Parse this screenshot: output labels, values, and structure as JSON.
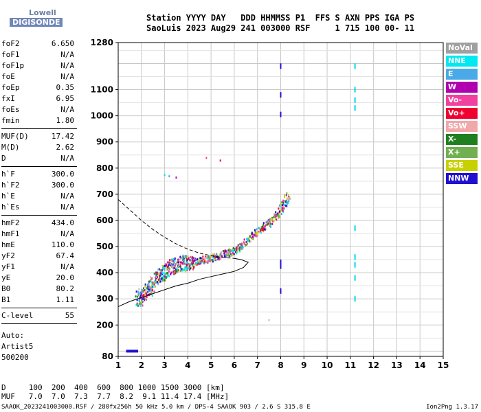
{
  "logo": {
    "line1": "Lowell",
    "line2": "DIGISONDE"
  },
  "header": {
    "line1": "Station YYYY DAY   DDD HHMMSS P1  FFS S AXN PPS IGA PS",
    "line2": "SaoLuis 2023 Aug29 241 003000 RSF     1 715 100 00- 11"
  },
  "params_group1": [
    {
      "k": "foF2",
      "v": "6.650"
    },
    {
      "k": "foF1",
      "v": "N/A"
    },
    {
      "k": "foF1p",
      "v": "N/A"
    },
    {
      "k": "foE",
      "v": "N/A"
    },
    {
      "k": "foEp",
      "v": "0.35"
    },
    {
      "k": "fxI",
      "v": "6.95"
    },
    {
      "k": "foEs",
      "v": "N/A"
    },
    {
      "k": "fmin",
      "v": "1.80"
    }
  ],
  "params_group2": [
    {
      "k": "MUF(D)",
      "v": "17.42"
    },
    {
      "k": "M(D)",
      "v": "2.62"
    },
    {
      "k": "D",
      "v": "N/A"
    }
  ],
  "params_group3": [
    {
      "k": "h`F",
      "v": "300.0"
    },
    {
      "k": "h`F2",
      "v": "300.0"
    },
    {
      "k": "h`E",
      "v": "N/A"
    },
    {
      "k": "h`Es",
      "v": "N/A"
    }
  ],
  "params_group4": [
    {
      "k": "hmF2",
      "v": "434.0"
    },
    {
      "k": "hmF1",
      "v": "N/A"
    },
    {
      "k": "hmE",
      "v": "110.0"
    },
    {
      "k": "yF2",
      "v": "67.4"
    },
    {
      "k": "yF1",
      "v": "N/A"
    },
    {
      "k": "yE",
      "v": "20.0"
    },
    {
      "k": "B0",
      "v": "80.2"
    },
    {
      "k": "B1",
      "v": "1.11"
    }
  ],
  "params_group5": [
    {
      "k": "C-level",
      "v": "55"
    }
  ],
  "auto": {
    "line1": "Auto:",
    "line2": "Artist5",
    "line3": "500200"
  },
  "legend": [
    {
      "label": "NoVal",
      "color": "#a0a0a0"
    },
    {
      "label": "NNE",
      "color": "#00e8f0"
    },
    {
      "label": "E",
      "color": "#4aaae8"
    },
    {
      "label": "W",
      "color": "#b000b0"
    },
    {
      "label": "Vo-",
      "color": "#f040a0"
    },
    {
      "label": "Vo+",
      "color": "#f00030"
    },
    {
      "label": "SSW",
      "color": "#f0a8a8"
    },
    {
      "label": "X-",
      "color": "#208020"
    },
    {
      "label": "X+",
      "color": "#70b050"
    },
    {
      "label": "SSE",
      "color": "#c8d000"
    },
    {
      "label": "NNW",
      "color": "#2010d0"
    }
  ],
  "muf_table": {
    "line1": "D     100  200  400  600  800 1000 1500 3000 [km]",
    "line2": "MUF   7.0  7.0  7.3  7.7  8.2  9.1 11.4 17.4 [MHz]"
  },
  "footer": {
    "left": "SAAOK_2023241003000.RSF / 280fx256h 50 kHz 5.0 km / DPS-4 SAAOK 903 / 2.6 S 315.8 E",
    "right": "Ion2Png 1.3.17"
  },
  "chart_data": {
    "type": "scatter",
    "title": "",
    "xlabel": "",
    "ylabel": "",
    "xlim": [
      1,
      15
    ],
    "ylim": [
      80,
      1280
    ],
    "x_ticks": [
      1,
      2,
      3,
      4,
      5,
      6,
      7,
      8,
      9,
      10,
      11,
      12,
      13,
      14,
      15
    ],
    "y_ticks": [
      80,
      200,
      300,
      400,
      500,
      600,
      700,
      800,
      900,
      1000,
      1100,
      1280
    ],
    "grid": true,
    "legend_position": "right",
    "trace_F2_oblique": {
      "x": [
        1.8,
        2.2,
        2.6,
        3.0,
        3.4,
        3.8,
        4.2,
        4.6,
        5.0,
        5.4,
        5.8,
        6.2,
        6.6,
        7.0,
        7.4,
        7.8,
        8.1,
        8.3
      ],
      "y": [
        300,
        330,
        380,
        410,
        430,
        440,
        445,
        450,
        460,
        470,
        480,
        500,
        530,
        560,
        590,
        620,
        660,
        700
      ]
    },
    "profile_upper_dashed": {
      "x": [
        1.0,
        1.5,
        2.0,
        2.5,
        3.0,
        3.5,
        4.0,
        4.5,
        5.0,
        5.5,
        6.0
      ],
      "y": [
        680,
        640,
        600,
        565,
        535,
        510,
        490,
        475,
        465,
        458,
        455
      ]
    },
    "profile_lower_solid": {
      "x": [
        1.0,
        1.5,
        2.0,
        2.5,
        3.0,
        3.5,
        4.0,
        4.5,
        5.0,
        5.5,
        6.0,
        6.4,
        6.6,
        6.3,
        6.0
      ],
      "y": [
        270,
        290,
        305,
        320,
        335,
        350,
        360,
        375,
        385,
        395,
        405,
        420,
        440,
        450,
        455
      ]
    },
    "spurious_lines": [
      {
        "x": 8.0,
        "y_values": [
          1190,
          1080,
          1005,
          440,
          425,
          330
        ]
      },
      {
        "x": 11.2,
        "y_values": [
          1190,
          1100,
          1060,
          1030,
          570,
          460,
          430,
          380,
          300
        ]
      }
    ],
    "low_echo": {
      "x": [
        1.4,
        1.5,
        1.6,
        1.7,
        1.8
      ],
      "y": [
        100,
        100,
        100,
        100,
        100
      ]
    },
    "sporadic_points": {
      "x": [
        3.0,
        3.2,
        3.5,
        4.8,
        5.4,
        7.5
      ],
      "y": [
        775,
        770,
        765,
        840,
        830,
        220
      ]
    }
  }
}
